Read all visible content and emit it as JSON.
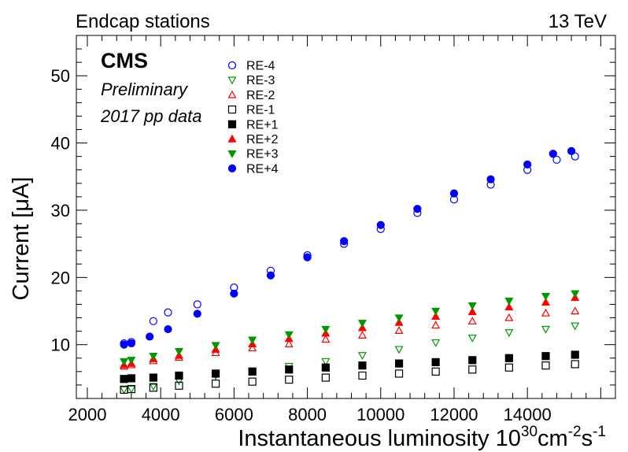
{
  "header": {
    "left": "Endcap stations",
    "right": "13 TeV"
  },
  "labels": {
    "experiment": "CMS",
    "status": "Preliminary",
    "dataset": "2017 pp data"
  },
  "chart_data": {
    "type": "scatter",
    "xlabel_main": "Instantaneous luminosity 10",
    "xlabel_sup1": "30",
    "xlabel_unit1": "cm",
    "xlabel_sup2": "-2",
    "xlabel_unit2": "s",
    "xlabel_sup3": "-1",
    "ylabel": "Current [μA]",
    "xlim": [
      1700,
      16400
    ],
    "ylim": [
      2.0,
      56.0
    ],
    "xticks": [
      2000,
      4000,
      6000,
      8000,
      10000,
      12000,
      14000
    ],
    "yticks": [
      10,
      20,
      30,
      40,
      50
    ],
    "grid": false,
    "legend_position": "top-left",
    "series": [
      {
        "name": "RE-4",
        "color": "#0000ff",
        "marker": "circle-open",
        "x": [
          3000,
          3200,
          3800,
          4200,
          5000,
          6000,
          7000,
          8000,
          9000,
          10000,
          11000,
          12000,
          13000,
          14000,
          14800,
          15300
        ],
        "y": [
          10.2,
          10.4,
          13.5,
          14.8,
          16.0,
          18.5,
          21.0,
          23.3,
          25.0,
          27.2,
          29.6,
          31.6,
          33.8,
          36.0,
          37.5,
          38.0
        ]
      },
      {
        "name": "RE-3",
        "color": "#009900",
        "marker": "triangle-down-open",
        "x": [
          3000,
          3200,
          3800,
          4500,
          5500,
          6500,
          7500,
          8500,
          9500,
          10500,
          11500,
          12500,
          13500,
          14500,
          15300
        ],
        "y": [
          3.3,
          3.4,
          3.8,
          4.6,
          5.4,
          6.1,
          6.8,
          7.5,
          8.4,
          9.3,
          10.3,
          11.0,
          11.8,
          12.3,
          12.8
        ]
      },
      {
        "name": "RE-2",
        "color": "#ff0000",
        "marker": "triangle-up-open",
        "x": [
          3000,
          3200,
          3800,
          4500,
          5500,
          6500,
          7500,
          8500,
          9500,
          10500,
          11500,
          12500,
          13500,
          14500,
          15300
        ],
        "y": [
          6.8,
          7.0,
          7.6,
          8.1,
          8.8,
          9.5,
          10.1,
          10.8,
          11.4,
          12.1,
          12.9,
          13.5,
          14.0,
          14.7,
          15.0
        ]
      },
      {
        "name": "RE-1",
        "color": "#000000",
        "marker": "square-open",
        "x": [
          3000,
          3200,
          3800,
          4500,
          5500,
          6500,
          7500,
          8500,
          9500,
          10500,
          11500,
          12500,
          13500,
          14500,
          15300
        ],
        "y": [
          3.3,
          3.4,
          3.6,
          3.9,
          4.2,
          4.5,
          4.8,
          5.1,
          5.4,
          5.7,
          6.0,
          6.3,
          6.6,
          6.9,
          7.1
        ]
      },
      {
        "name": "RE+1",
        "color": "#000000",
        "marker": "square-filled",
        "x": [
          3000,
          3200,
          3800,
          4500,
          5500,
          6500,
          7500,
          8500,
          9500,
          10500,
          11500,
          12500,
          13500,
          14500,
          15300
        ],
        "y": [
          4.9,
          5.0,
          5.1,
          5.4,
          5.7,
          6.0,
          6.3,
          6.6,
          6.9,
          7.2,
          7.4,
          7.7,
          8.0,
          8.3,
          8.5
        ]
      },
      {
        "name": "RE+2",
        "color": "#ff0000",
        "marker": "triangle-up-filled",
        "x": [
          3000,
          3200,
          3800,
          4500,
          5500,
          6500,
          7500,
          8500,
          9500,
          10500,
          11500,
          12500,
          13500,
          14500,
          15300
        ],
        "y": [
          7.0,
          7.2,
          7.9,
          8.4,
          9.3,
          10.1,
          10.9,
          11.7,
          12.5,
          13.3,
          14.2,
          14.9,
          15.6,
          16.3,
          17.0
        ]
      },
      {
        "name": "RE+3",
        "color": "#009900",
        "marker": "triangle-down-filled",
        "x": [
          3000,
          3200,
          3800,
          4500,
          5500,
          6500,
          7500,
          8500,
          9500,
          10500,
          11500,
          12500,
          13500,
          14500,
          15300
        ],
        "y": [
          7.5,
          7.7,
          8.3,
          9.0,
          9.9,
          10.7,
          11.5,
          12.3,
          13.2,
          14.0,
          15.0,
          15.8,
          16.5,
          17.2,
          17.6
        ]
      },
      {
        "name": "RE+4",
        "color": "#0000ff",
        "marker": "circle-filled",
        "x": [
          3000,
          3200,
          3700,
          4200,
          5000,
          6000,
          7000,
          8000,
          9000,
          10000,
          11000,
          12000,
          13000,
          14000,
          14700,
          15200
        ],
        "y": [
          10.0,
          10.2,
          11.2,
          12.3,
          14.6,
          17.6,
          20.3,
          23.0,
          25.4,
          27.8,
          30.2,
          32.5,
          34.6,
          36.8,
          38.4,
          38.8
        ]
      }
    ]
  }
}
